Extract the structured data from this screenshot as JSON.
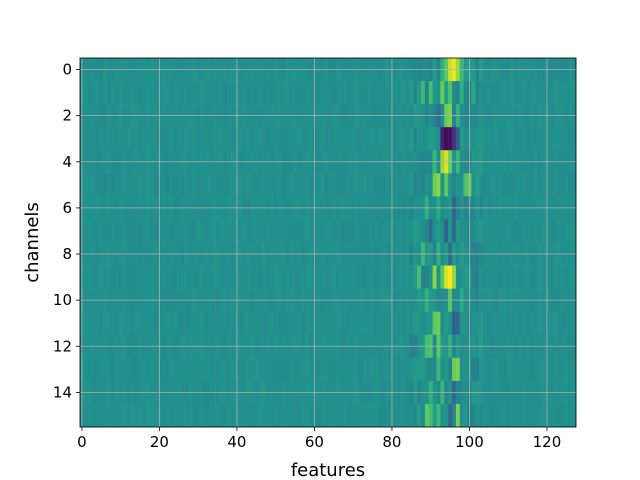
{
  "chart_data": {
    "type": "heatmap",
    "title": "",
    "xlabel": "features",
    "ylabel": "channels",
    "colormap": "viridis",
    "grid": true,
    "n_rows": 16,
    "n_cols": 128,
    "xlim": [
      0,
      127
    ],
    "ylim": [
      15,
      0
    ],
    "x_ticks": [
      0,
      20,
      40,
      60,
      80,
      100,
      120
    ],
    "y_ticks": [
      0,
      2,
      4,
      6,
      8,
      10,
      12,
      14
    ],
    "value_range": [
      -1,
      1
    ],
    "background_value": 0.0,
    "hot_cells": [
      {
        "row": 0,
        "col": 93,
        "value": 0.3
      },
      {
        "row": 0,
        "col": 94,
        "value": 0.5
      },
      {
        "row": 0,
        "col": 95,
        "value": 0.85
      },
      {
        "row": 0,
        "col": 96,
        "value": 0.95
      },
      {
        "row": 0,
        "col": 97,
        "value": 0.7
      },
      {
        "row": 0,
        "col": 98,
        "value": 0.35
      },
      {
        "row": 1,
        "col": 88,
        "value": 0.35
      },
      {
        "row": 1,
        "col": 90,
        "value": 0.4
      },
      {
        "row": 1,
        "col": 93,
        "value": 0.55
      },
      {
        "row": 1,
        "col": 95,
        "value": 0.45
      },
      {
        "row": 1,
        "col": 98,
        "value": 0.3
      },
      {
        "row": 1,
        "col": 101,
        "value": 0.25
      },
      {
        "row": 2,
        "col": 92,
        "value": -0.25
      },
      {
        "row": 2,
        "col": 94,
        "value": 0.55
      },
      {
        "row": 2,
        "col": 95,
        "value": 0.6
      },
      {
        "row": 2,
        "col": 97,
        "value": 0.3
      },
      {
        "row": 3,
        "col": 93,
        "value": -0.8
      },
      {
        "row": 3,
        "col": 94,
        "value": -0.95
      },
      {
        "row": 3,
        "col": 95,
        "value": -0.9
      },
      {
        "row": 3,
        "col": 96,
        "value": -0.7
      },
      {
        "row": 3,
        "col": 97,
        "value": -0.4
      },
      {
        "row": 4,
        "col": 91,
        "value": 0.35
      },
      {
        "row": 4,
        "col": 93,
        "value": 0.7
      },
      {
        "row": 4,
        "col": 94,
        "value": 0.9
      },
      {
        "row": 4,
        "col": 95,
        "value": 0.55
      },
      {
        "row": 4,
        "col": 97,
        "value": 0.35
      },
      {
        "row": 5,
        "col": 91,
        "value": 0.55
      },
      {
        "row": 5,
        "col": 92,
        "value": 0.65
      },
      {
        "row": 5,
        "col": 94,
        "value": 0.5
      },
      {
        "row": 5,
        "col": 99,
        "value": 0.45
      },
      {
        "row": 5,
        "col": 100,
        "value": 0.55
      },
      {
        "row": 6,
        "col": 89,
        "value": 0.3
      },
      {
        "row": 6,
        "col": 92,
        "value": 0.25
      },
      {
        "row": 6,
        "col": 96,
        "value": -0.3
      },
      {
        "row": 7,
        "col": 90,
        "value": -0.3
      },
      {
        "row": 7,
        "col": 94,
        "value": -0.35
      },
      {
        "row": 7,
        "col": 96,
        "value": -0.25
      },
      {
        "row": 8,
        "col": 88,
        "value": 0.35
      },
      {
        "row": 8,
        "col": 92,
        "value": 0.3
      },
      {
        "row": 8,
        "col": 95,
        "value": -0.3
      },
      {
        "row": 9,
        "col": 87,
        "value": 0.4
      },
      {
        "row": 9,
        "col": 91,
        "value": 0.65
      },
      {
        "row": 9,
        "col": 93,
        "value": 0.5
      },
      {
        "row": 9,
        "col": 94,
        "value": 0.9
      },
      {
        "row": 9,
        "col": 95,
        "value": 1.0
      },
      {
        "row": 9,
        "col": 96,
        "value": 0.7
      },
      {
        "row": 10,
        "col": 89,
        "value": 0.3
      },
      {
        "row": 10,
        "col": 95,
        "value": 0.5
      },
      {
        "row": 10,
        "col": 98,
        "value": 0.25
      },
      {
        "row": 11,
        "col": 91,
        "value": 0.5
      },
      {
        "row": 11,
        "col": 92,
        "value": 0.55
      },
      {
        "row": 11,
        "col": 96,
        "value": -0.35
      },
      {
        "row": 11,
        "col": 97,
        "value": -0.3
      },
      {
        "row": 12,
        "col": 89,
        "value": 0.4
      },
      {
        "row": 12,
        "col": 90,
        "value": 0.45
      },
      {
        "row": 12,
        "col": 92,
        "value": 0.5
      },
      {
        "row": 12,
        "col": 95,
        "value": 0.3
      },
      {
        "row": 13,
        "col": 92,
        "value": 0.35
      },
      {
        "row": 13,
        "col": 96,
        "value": 0.55
      },
      {
        "row": 13,
        "col": 97,
        "value": 0.6
      },
      {
        "row": 14,
        "col": 90,
        "value": 0.3
      },
      {
        "row": 14,
        "col": 93,
        "value": 0.35
      },
      {
        "row": 14,
        "col": 96,
        "value": -0.3
      },
      {
        "row": 15,
        "col": 89,
        "value": 0.5
      },
      {
        "row": 15,
        "col": 90,
        "value": 0.4
      },
      {
        "row": 15,
        "col": 92,
        "value": 0.35
      },
      {
        "row": 15,
        "col": 95,
        "value": -0.3
      },
      {
        "row": 15,
        "col": 97,
        "value": 0.6
      }
    ]
  }
}
